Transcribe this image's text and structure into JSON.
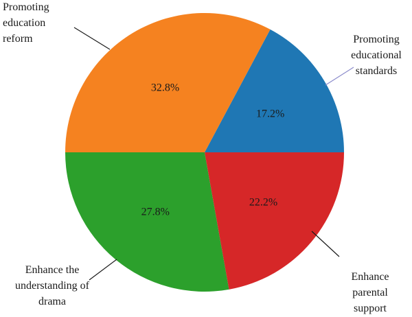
{
  "chart_data": {
    "type": "pie",
    "slices": [
      {
        "name_lines": [
          "Promoting",
          "educational",
          "standards"
        ],
        "value": 17.2,
        "value_label": "17.2%",
        "color": "#1f77b4"
      },
      {
        "name_lines": [
          "Promoting",
          "education",
          "reform"
        ],
        "value": 32.8,
        "value_label": "32.8%",
        "color": "#f58220"
      },
      {
        "name_lines": [
          "Enhance the",
          "understanding of",
          "drama"
        ],
        "value": 27.8,
        "value_label": "27.8%",
        "color": "#2ca02c"
      },
      {
        "name_lines": [
          "Enhance",
          "parental",
          "support"
        ],
        "value": 22.2,
        "value_label": "22.2%",
        "color": "#d62728"
      }
    ]
  }
}
